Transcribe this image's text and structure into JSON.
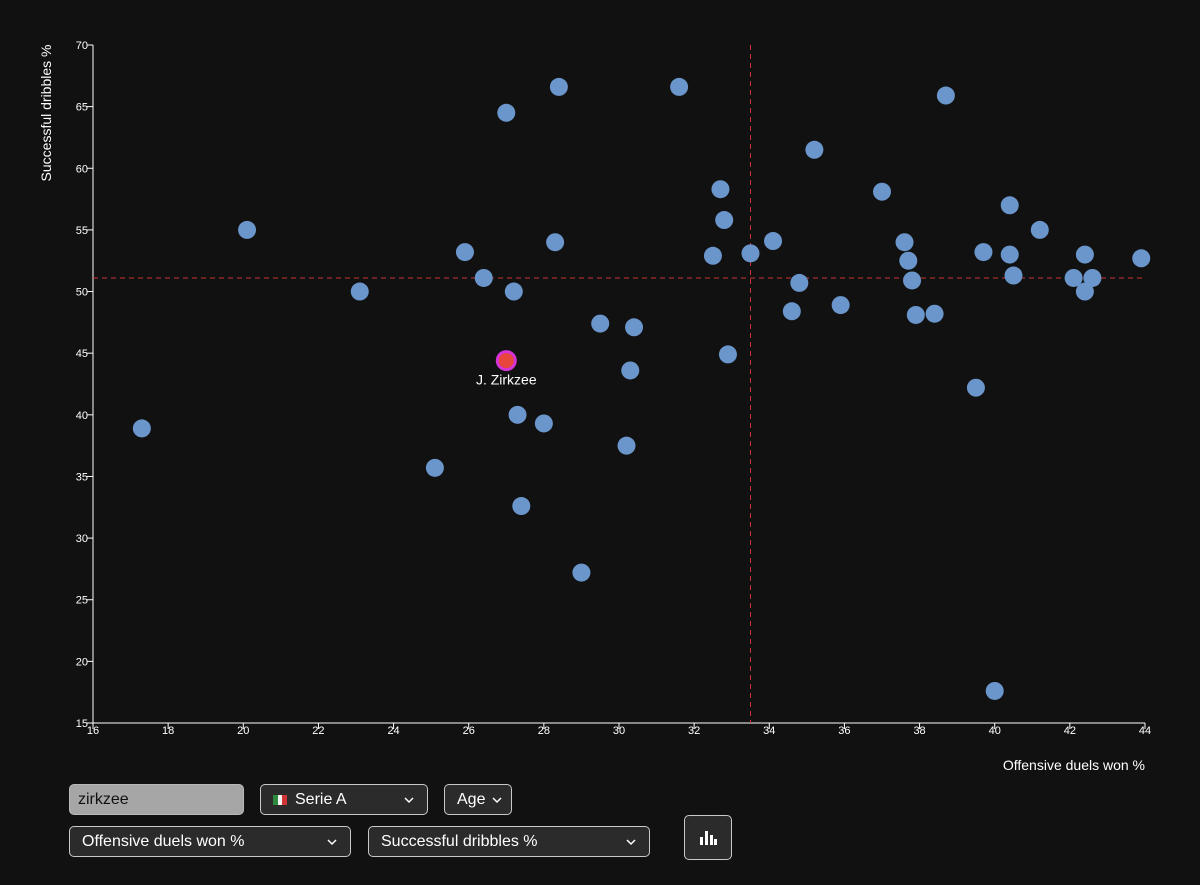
{
  "chart_data": {
    "type": "scatter",
    "xlabel": "Offensive duels won %",
    "ylabel": "Successful dribbles %",
    "xlim": [
      16,
      44
    ],
    "ylim": [
      15,
      70
    ],
    "xticks": [
      16,
      18,
      20,
      22,
      24,
      26,
      28,
      30,
      32,
      34,
      36,
      38,
      40,
      42,
      44
    ],
    "yticks": [
      15,
      20,
      25,
      30,
      35,
      40,
      45,
      50,
      55,
      60,
      65,
      70
    ],
    "reference_lines": {
      "x": 33.5,
      "y": 51.1,
      "style": "dashed",
      "color": "#cc3333"
    },
    "highlight": {
      "label": "J. Zirkzee",
      "x": 27.0,
      "y": 44.4,
      "fill": "#e8453c",
      "stroke": "#d633d6"
    },
    "point_color": "#6b96cc",
    "points": [
      [
        17.3,
        38.9
      ],
      [
        20.1,
        55.0
      ],
      [
        23.1,
        50.0
      ],
      [
        25.1,
        35.7
      ],
      [
        25.9,
        53.2
      ],
      [
        26.4,
        51.1
      ],
      [
        27.0,
        64.5
      ],
      [
        27.2,
        50.0
      ],
      [
        27.3,
        40.0
      ],
      [
        27.4,
        32.6
      ],
      [
        28.0,
        39.3
      ],
      [
        28.3,
        54.0
      ],
      [
        28.4,
        66.6
      ],
      [
        29.0,
        27.2
      ],
      [
        29.5,
        47.4
      ],
      [
        30.2,
        37.5
      ],
      [
        30.3,
        43.6
      ],
      [
        30.4,
        47.1
      ],
      [
        31.6,
        66.6
      ],
      [
        32.5,
        52.9
      ],
      [
        32.7,
        58.3
      ],
      [
        32.8,
        55.8
      ],
      [
        32.9,
        44.9
      ],
      [
        33.5,
        53.1
      ],
      [
        34.1,
        54.1
      ],
      [
        34.6,
        48.4
      ],
      [
        34.8,
        50.7
      ],
      [
        35.2,
        61.5
      ],
      [
        35.9,
        48.9
      ],
      [
        37.0,
        58.1
      ],
      [
        37.6,
        54.0
      ],
      [
        37.7,
        52.5
      ],
      [
        37.8,
        50.9
      ],
      [
        37.9,
        48.1
      ],
      [
        38.4,
        48.2
      ],
      [
        38.7,
        65.9
      ],
      [
        39.5,
        42.2
      ],
      [
        39.7,
        53.2
      ],
      [
        40.0,
        17.6
      ],
      [
        40.4,
        57.0
      ],
      [
        40.4,
        53.0
      ],
      [
        40.5,
        51.3
      ],
      [
        41.2,
        55.0
      ],
      [
        42.1,
        51.1
      ],
      [
        42.4,
        53.0
      ],
      [
        42.4,
        50.0
      ],
      [
        42.6,
        51.1
      ],
      [
        43.9,
        52.7
      ]
    ]
  },
  "controls": {
    "search": {
      "value": "zirkzee",
      "placeholder": ""
    },
    "league_select": {
      "value": "Serie A"
    },
    "age_select": {
      "value": "Age"
    },
    "x_metric_select": {
      "value": "Offensive duels won %"
    },
    "y_metric_select": {
      "value": "Successful dribbles %"
    },
    "chart_button": {
      "icon": "bar-chart-icon"
    }
  }
}
